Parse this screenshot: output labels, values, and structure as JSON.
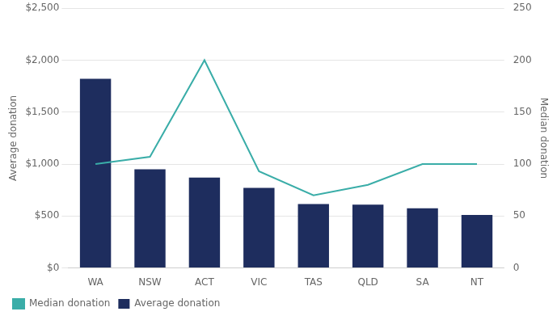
{
  "chart_data": {
    "type": "bar",
    "categories": [
      "WA",
      "NSW",
      "ACT",
      "VIC",
      "TAS",
      "QLD",
      "SA",
      "NT"
    ],
    "series": [
      {
        "name": "Average donation",
        "type": "bar",
        "color": "#1e2d5e",
        "values": [
          1820,
          950,
          870,
          770,
          615,
          610,
          575,
          510
        ]
      },
      {
        "name": "Median donation",
        "type": "line",
        "color": "#3aada8",
        "axis": "y2",
        "marker": "none",
        "values": [
          100,
          107,
          200,
          93,
          70,
          80,
          100,
          100
        ]
      }
    ],
    "ylabel": "Average donation",
    "y2label": "Median donation",
    "ylim": [
      0,
      2500
    ],
    "yticks": [
      {
        "value": 0,
        "label": "$0"
      },
      {
        "value": 500,
        "label": "$500"
      },
      {
        "value": 1000,
        "label": "$1,000"
      },
      {
        "value": 1500,
        "label": "$1,500"
      },
      {
        "value": 2000,
        "label": "$2,000"
      },
      {
        "value": 2500,
        "label": "$2,500"
      }
    ],
    "y2lim": [
      0,
      250
    ],
    "y2ticks": [
      0,
      50,
      100,
      150,
      200,
      250
    ],
    "grid": true,
    "legend": "bottom"
  }
}
